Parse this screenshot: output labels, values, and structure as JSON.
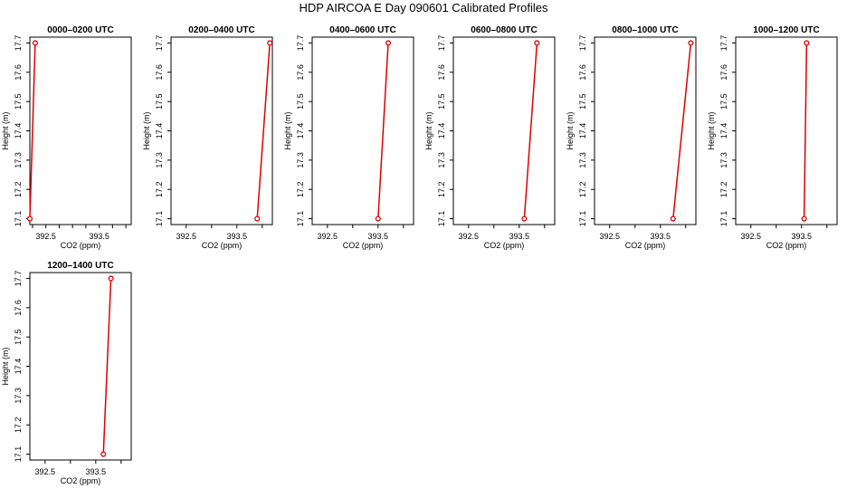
{
  "title": "HDP AIRCOA E  Day 090601  Calibrated Profiles",
  "chart_data": [
    {
      "type": "line",
      "title": "0000–0200 UTC",
      "xlabel": "CO2 (ppm)",
      "ylabel": "Height (m)",
      "x": [
        392.2,
        392.3
      ],
      "y": [
        17.1,
        17.7
      ],
      "xlim": [
        392.2,
        394.1
      ],
      "ylim": [
        17.08,
        17.72
      ],
      "xticks": [
        392.5,
        393.5
      ],
      "xminor": [
        392.25,
        392.75,
        393.0,
        393.25,
        393.75,
        394.0
      ],
      "yticks": [
        17.1,
        17.2,
        17.3,
        17.4,
        17.5,
        17.6,
        17.7
      ],
      "color": "#dd0000"
    },
    {
      "type": "line",
      "title": "0200–0400 UTC",
      "xlabel": "CO2 (ppm)",
      "ylabel": "Height (m)",
      "x": [
        393.9,
        394.15
      ],
      "y": [
        17.1,
        17.7
      ],
      "xlim": [
        392.2,
        394.2
      ],
      "ylim": [
        17.08,
        17.72
      ],
      "xticks": [
        392.5,
        393.5
      ],
      "xminor": [
        393.0,
        394.0
      ],
      "yticks": [
        17.1,
        17.2,
        17.3,
        17.4,
        17.5,
        17.6,
        17.7
      ],
      "color": "#dd0000"
    },
    {
      "type": "line",
      "title": "0400–0600 UTC",
      "xlabel": "CO2 (ppm)",
      "ylabel": "Height (m)",
      "x": [
        393.5,
        393.7
      ],
      "y": [
        17.1,
        17.7
      ],
      "xlim": [
        392.2,
        394.2
      ],
      "ylim": [
        17.08,
        17.72
      ],
      "xticks": [
        392.5,
        393.5
      ],
      "xminor": [
        393.0,
        394.0
      ],
      "yticks": [
        17.1,
        17.2,
        17.3,
        17.4,
        17.5,
        17.6,
        17.7
      ],
      "color": "#dd0000"
    },
    {
      "type": "line",
      "title": "0600–0800 UTC",
      "xlabel": "CO2 (ppm)",
      "ylabel": "Height (m)",
      "x": [
        393.6,
        393.85
      ],
      "y": [
        17.1,
        17.7
      ],
      "xlim": [
        392.2,
        394.2
      ],
      "ylim": [
        17.08,
        17.72
      ],
      "xticks": [
        392.5,
        393.5
      ],
      "xminor": [
        393.0,
        394.0
      ],
      "yticks": [
        17.1,
        17.2,
        17.3,
        17.4,
        17.5,
        17.6,
        17.7
      ],
      "color": "#dd0000"
    },
    {
      "type": "line",
      "title": "0800–1000 UTC",
      "xlabel": "CO2 (ppm)",
      "ylabel": "Height (m)",
      "x": [
        393.75,
        394.1
      ],
      "y": [
        17.1,
        17.7
      ],
      "xlim": [
        392.2,
        394.2
      ],
      "ylim": [
        17.08,
        17.72
      ],
      "xticks": [
        392.5,
        393.5
      ],
      "xminor": [
        393.0,
        394.0
      ],
      "yticks": [
        17.1,
        17.2,
        17.3,
        17.4,
        17.5,
        17.6,
        17.7
      ],
      "color": "#dd0000"
    },
    {
      "type": "line",
      "title": "1000–1200 UTC",
      "xlabel": "CO2 (ppm)",
      "ylabel": "Height (m)",
      "x": [
        393.55,
        393.6
      ],
      "y": [
        17.1,
        17.7
      ],
      "xlim": [
        392.2,
        394.2
      ],
      "ylim": [
        17.08,
        17.72
      ],
      "xticks": [
        392.5,
        393.5
      ],
      "xminor": [
        393.0,
        394.0
      ],
      "yticks": [
        17.1,
        17.2,
        17.3,
        17.4,
        17.5,
        17.6,
        17.7
      ],
      "color": "#dd0000"
    },
    {
      "type": "line",
      "title": "1200–1400 UTC",
      "xlabel": "CO2 (ppm)",
      "ylabel": "Height (m)",
      "x": [
        393.65,
        393.8
      ],
      "y": [
        17.1,
        17.7
      ],
      "xlim": [
        392.2,
        394.2
      ],
      "ylim": [
        17.08,
        17.72
      ],
      "xticks": [
        392.5,
        393.5
      ],
      "xminor": [
        393.0,
        394.0
      ],
      "yticks": [
        17.1,
        17.2,
        17.3,
        17.4,
        17.5,
        17.6,
        17.7
      ],
      "color": "#dd0000"
    }
  ]
}
